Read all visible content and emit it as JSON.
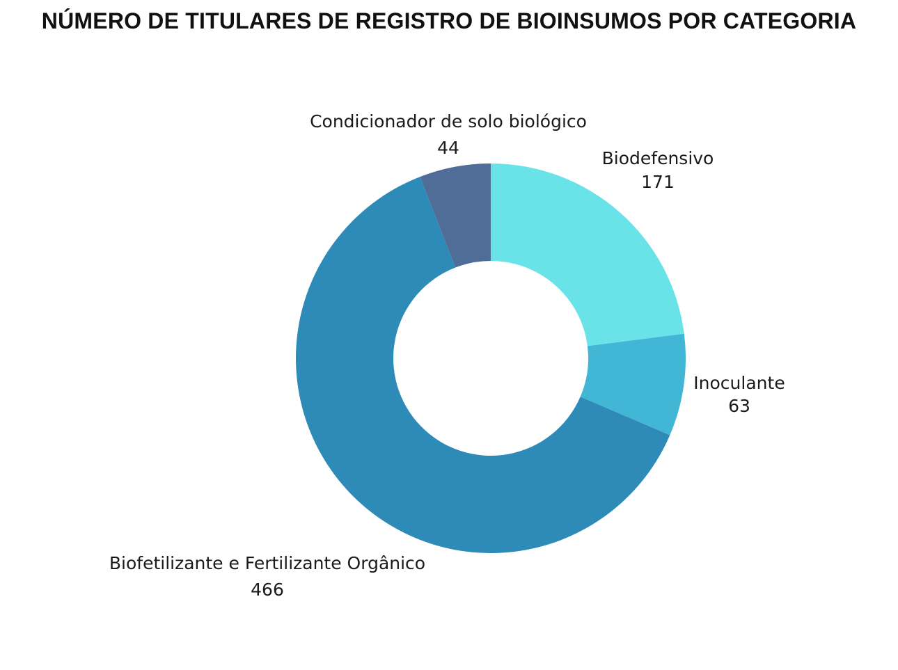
{
  "chart_data": {
    "type": "pie",
    "title": "NÚMERO DE TITULARES DE REGISTRO DE BIOINSUMOS POR CATEGORIA",
    "categories": [
      "Biodefensivo",
      "Inoculante",
      "Biofetilizante e Fertilizante Orgânico",
      "Condicionador de solo biológico"
    ],
    "values": [
      171,
      63,
      466,
      44
    ],
    "value_labels": [
      "171",
      "63",
      "466",
      "44"
    ],
    "colors": [
      "#6ae3e8",
      "#42b7d5",
      "#2e8bb8",
      "#4f6d97"
    ],
    "donut": true,
    "start_angle": "12 o'clock",
    "direction": "clockwise"
  }
}
